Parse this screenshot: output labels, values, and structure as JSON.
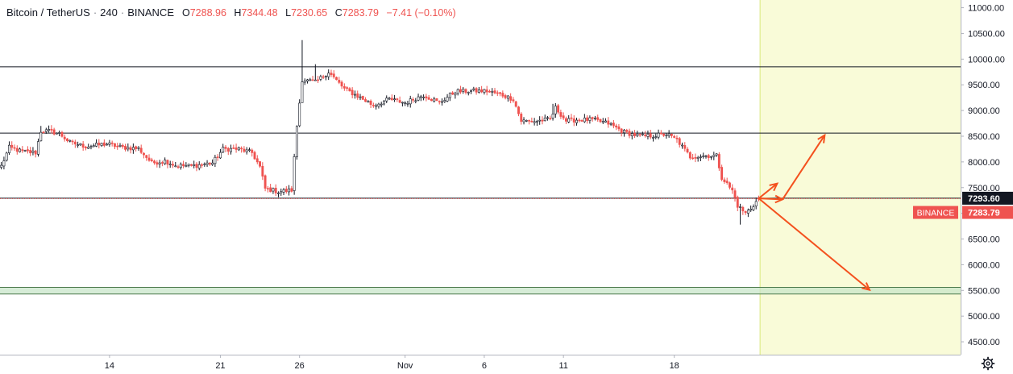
{
  "header": {
    "symbol": "Bitcoin / TetherUS",
    "interval": "240",
    "exchange": "BINANCE",
    "open_label": "O",
    "open": "7288.96",
    "high_label": "H",
    "high": "7344.48",
    "low_label": "L",
    "low": "7230.65",
    "close_label": "C",
    "close": "7283.79",
    "change": "−7.41 (−0.10%)"
  },
  "price_tags": {
    "level_value": "7293.60",
    "exchange_tag": "BINANCE",
    "last_value": "7283.79"
  },
  "colors": {
    "up": "#131722",
    "down": "#ef5350",
    "projection_zone": "#f9fbd8",
    "support_band": "#c8e6c9",
    "arrow": "#f4511e",
    "level_line": "#131722",
    "axis_text": "#131722"
  },
  "icons": {
    "settings": "gear-icon"
  },
  "chart_data": {
    "type": "candlestick",
    "title": "",
    "instrument": "Bitcoin / TetherUS",
    "timeframe": "240",
    "y_ticks": [
      4500,
      5000,
      5500,
      6000,
      6500,
      7000,
      7500,
      8000,
      8500,
      9000,
      9500,
      10000,
      10500,
      11000
    ],
    "y_tick_labels": [
      "4500.00",
      "5000.00",
      "5500.00",
      "6000.00",
      "6500.00",
      "7000.00",
      "7500.00",
      "8000.00",
      "8500.00",
      "9000.00",
      "9500.00",
      "10000.00",
      "10500.00",
      "11000.00"
    ],
    "ylim": [
      4250,
      11150
    ],
    "x_tick_labels": [
      "14",
      "21",
      "26",
      "Nov",
      "6",
      "11",
      "18"
    ],
    "x_tick_index": [
      41,
      83,
      113,
      153,
      183,
      213,
      255
    ],
    "bars_total": 364,
    "last_bar_index": 287,
    "horizontal_levels": [
      9850,
      8560,
      7293.6
    ],
    "support_band": [
      5430,
      5560
    ],
    "projection_start_index": 287,
    "projection_arrows": [
      {
        "from": [
          287,
          7290
        ],
        "to": [
          294,
          7580
        ]
      },
      {
        "from": [
          287,
          7290
        ],
        "to": [
          296,
          7270
        ]
      },
      {
        "from": [
          296,
          7270
        ],
        "to": [
          312,
          8520
        ]
      },
      {
        "from": [
          287,
          7290
        ],
        "to": [
          329,
          5510
        ]
      }
    ],
    "anchors": [
      [
        0,
        7920
      ],
      [
        3,
        8280
      ],
      [
        8,
        8200
      ],
      [
        13,
        8180
      ],
      [
        15,
        8600
      ],
      [
        18,
        8600
      ],
      [
        22,
        8550
      ],
      [
        26,
        8380
      ],
      [
        32,
        8300
      ],
      [
        40,
        8350
      ],
      [
        46,
        8280
      ],
      [
        52,
        8260
      ],
      [
        57,
        7980
      ],
      [
        62,
        8020
      ],
      [
        66,
        7930
      ],
      [
        72,
        7920
      ],
      [
        80,
        7980
      ],
      [
        84,
        8250
      ],
      [
        90,
        8250
      ],
      [
        95,
        8180
      ],
      [
        98,
        7900
      ],
      [
        100,
        7480
      ],
      [
        105,
        7420
      ],
      [
        110,
        7450
      ],
      [
        112,
        8700
      ],
      [
        114,
        9600
      ],
      [
        119,
        9550
      ],
      [
        124,
        9750
      ],
      [
        130,
        9420
      ],
      [
        135,
        9280
      ],
      [
        141,
        9100
      ],
      [
        147,
        9220
      ],
      [
        153,
        9150
      ],
      [
        160,
        9300
      ],
      [
        166,
        9150
      ],
      [
        172,
        9370
      ],
      [
        178,
        9380
      ],
      [
        184,
        9380
      ],
      [
        190,
        9300
      ],
      [
        194,
        9220
      ],
      [
        197,
        8800
      ],
      [
        202,
        8790
      ],
      [
        208,
        8830
      ],
      [
        210,
        9050
      ],
      [
        214,
        8800
      ],
      [
        218,
        8820
      ],
      [
        224,
        8820
      ],
      [
        230,
        8750
      ],
      [
        236,
        8580
      ],
      [
        242,
        8500
      ],
      [
        247,
        8510
      ],
      [
        252,
        8540
      ],
      [
        256,
        8430
      ],
      [
        261,
        8100
      ],
      [
        267,
        8120
      ],
      [
        271,
        8120
      ],
      [
        273,
        7700
      ],
      [
        277,
        7440
      ],
      [
        279,
        7150
      ],
      [
        282,
        7000
      ],
      [
        284,
        7100
      ],
      [
        287,
        7283.79
      ]
    ],
    "spikes": [
      {
        "i": 114,
        "high": 10370,
        "low": 9500
      },
      {
        "i": 119,
        "high": 9900
      },
      {
        "i": 111,
        "low": 7360
      },
      {
        "i": 280,
        "low": 6780
      },
      {
        "i": 209,
        "high": 9130
      },
      {
        "i": 15,
        "high": 8700
      }
    ],
    "last_candle": {
      "open": 7288.96,
      "high": 7344.48,
      "low": 7230.65,
      "close": 7283.79
    }
  }
}
